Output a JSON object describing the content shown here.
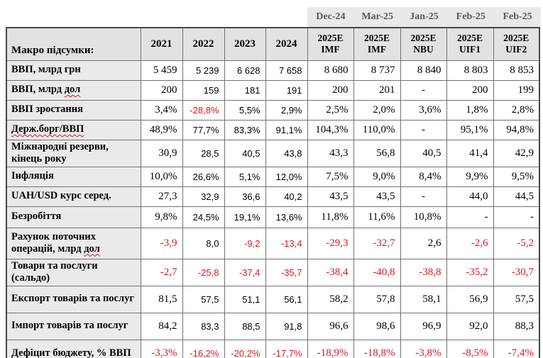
{
  "colors": {
    "red": "#e01414",
    "header_bg": "#e2e2e2",
    "label_bg": "#eaeaea",
    "strip_bg": "#e9e9e9",
    "strip_text": "#595959",
    "border": "#737373",
    "outer_border": "#474747"
  },
  "strip": {
    "labels": [
      "Dec-24",
      "Mar-25",
      "Jan-25",
      "Feb-25",
      "Feb-25"
    ]
  },
  "table": {
    "title_header": "Макро підсумки:",
    "year_headers": [
      "2021",
      "2022",
      "2023",
      "2024"
    ],
    "forecast_headers": [
      {
        "line1": "2025E",
        "line2": "IMF"
      },
      {
        "line1": "2025E",
        "line2": "IMF"
      },
      {
        "line1": "2025E",
        "line2": "NBU"
      },
      {
        "line1": "2025E",
        "line2": "UIF1"
      },
      {
        "line1": "2025E",
        "line2": "UIF2"
      }
    ],
    "rows": [
      {
        "label": [
          {
            "t": "ВВП, млрд грн"
          }
        ],
        "values": [
          "5 459",
          "5 239",
          "6 628",
          "7 658",
          "8 680",
          "8 737",
          "8 840",
          "8 803",
          "8 853"
        ]
      },
      {
        "label": [
          {
            "t": "ВВП, млрд "
          },
          {
            "t": "дол",
            "w": true
          }
        ],
        "values": [
          "200",
          "159",
          "181",
          "191",
          "200",
          "201",
          "-",
          "200",
          "199"
        ]
      },
      {
        "label": [
          {
            "t": "ВВП зростання"
          }
        ],
        "values": [
          "3,4%",
          "-28,8%",
          "5,5%",
          "2,9%",
          "2,5%",
          "2,0%",
          "3,6%",
          "1,8%",
          "2,8%"
        ]
      },
      {
        "label": [
          {
            "t": "Держ.борг/ВВП",
            "w": true
          }
        ],
        "values": [
          "48,9%",
          "77,7%",
          "83,3%",
          "91,1%",
          "104,3%",
          "110,0%",
          "-",
          "95,1%",
          "94,8%"
        ]
      },
      {
        "label": [
          {
            "t": "Міжнародні резерви, кінець року"
          }
        ],
        "values": [
          "30,9",
          "28,5",
          "40,5",
          "43,8",
          "43,3",
          "56,8",
          "40,5",
          "41,4",
          "42,9"
        ]
      },
      {
        "label": [
          {
            "t": "Інфляція"
          }
        ],
        "values": [
          "10,0%",
          "26,6%",
          "5,1%",
          "12,0%",
          "7,5%",
          "9,0%",
          "8,4%",
          "9,9%",
          "9,5%"
        ]
      },
      {
        "label": [
          {
            "t": "UAH/USD курс серед."
          }
        ],
        "values": [
          "27,3",
          "32,9",
          "36,6",
          "40,2",
          "43,5",
          "43,5",
          "-",
          "44,0",
          "44,5"
        ]
      },
      {
        "label": [
          {
            "t": "Безробіття"
          }
        ],
        "values": [
          "9,8%",
          "24,5%",
          "19,1%",
          "13,6%",
          "11,8%",
          "11,6%",
          "10,8%",
          "-",
          "-"
        ]
      },
      {
        "label": [
          {
            "t": "Рахунок поточних операцій, млрд "
          },
          {
            "t": "дол",
            "w": true
          }
        ],
        "values": [
          "-3,9",
          "8,0",
          "-9,2",
          "-13,4",
          "-29,3",
          "-32,7",
          "2,6",
          "-2,6",
          "-5,2"
        ]
      },
      {
        "label": [
          {
            "t": "Товари та послуги (сальдо)"
          }
        ],
        "values": [
          "-2,7",
          "-25,8",
          "-37,4",
          "-35,7",
          "-38,4",
          "-40,8",
          "-38,8",
          "-35,2",
          "-30,7"
        ]
      },
      {
        "label": [
          {
            "t": "Експорт товарів та послуг"
          }
        ],
        "values": [
          "81,5",
          "57,5",
          "51,1",
          "56,1",
          "58,2",
          "57,8",
          "58,1",
          "56,9",
          "57,5"
        ]
      },
      {
        "label": [
          {
            "t": "Імпорт товарів та послуг"
          }
        ],
        "values": [
          "84,2",
          "83,3",
          "88,5",
          "91,8",
          "96,6",
          "98,6",
          "96,9",
          "92,0",
          "88,3"
        ]
      },
      {
        "label": [
          {
            "t": "Дефіцит бюджету,  % ВВП"
          }
        ],
        "values": [
          "-3,3%",
          "-16,2%",
          "-20,2%",
          "-17,7%",
          "-18,9%",
          "-18,8%",
          "-3,8%",
          "-8,5%",
          "-7,4%"
        ]
      }
    ]
  }
}
